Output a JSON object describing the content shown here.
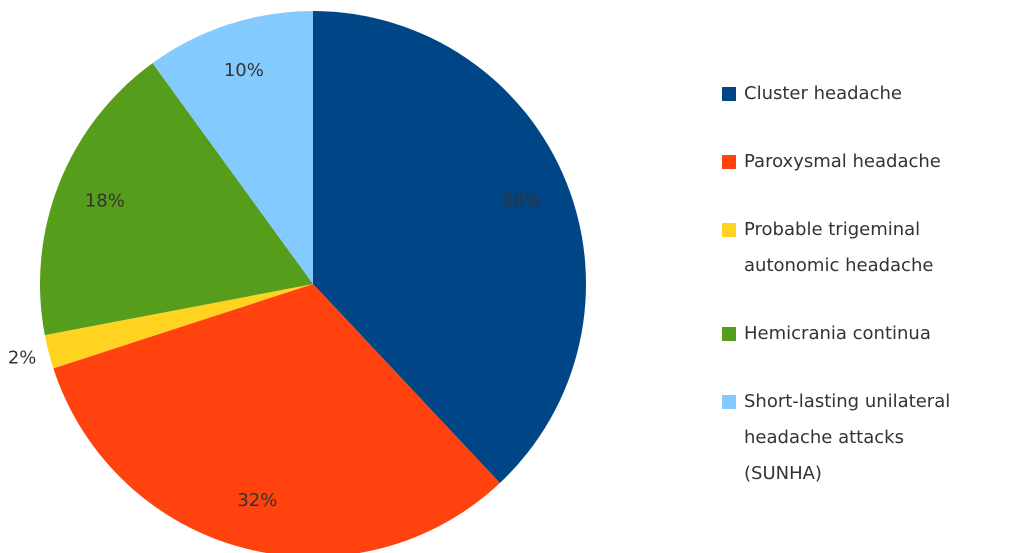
{
  "chart_data": {
    "type": "pie",
    "categories": [
      "Cluster headache",
      "Paroxysmal headache",
      "Probable trigeminal autonomic headache",
      "Hemicrania continua",
      "Short-lasting unilateral headache attacks (SUNHA)"
    ],
    "values": [
      38,
      32,
      2,
      18,
      10
    ],
    "value_labels": [
      "38%",
      "32%",
      "2%",
      "18%",
      "10%"
    ],
    "colors": [
      "#004586",
      "#ff420e",
      "#ffd320",
      "#579d1c",
      "#83caff"
    ],
    "legend": "right"
  }
}
